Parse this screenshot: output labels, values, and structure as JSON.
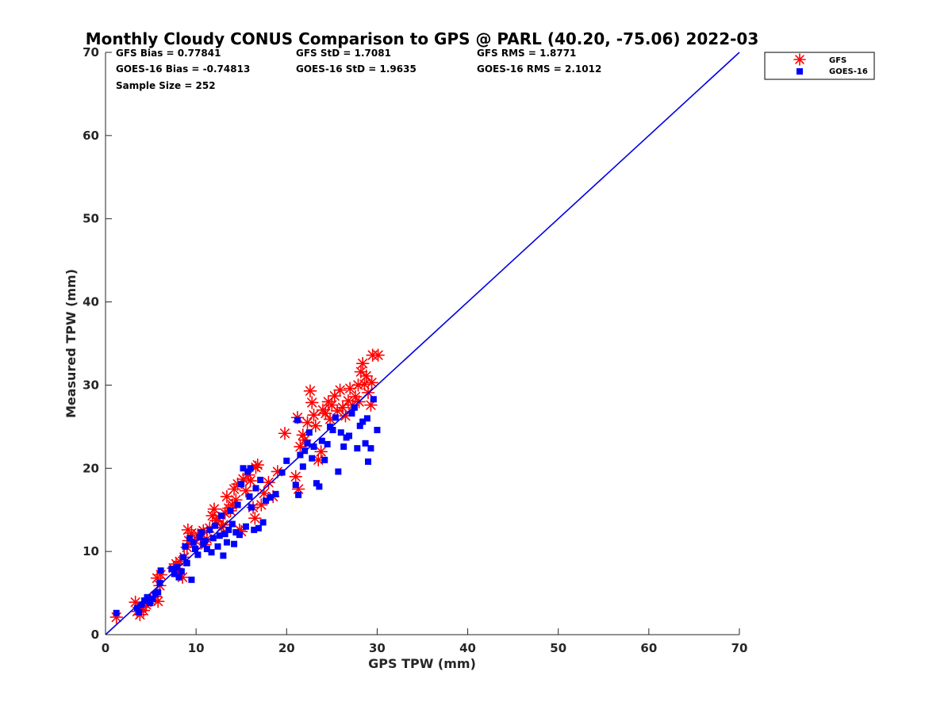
{
  "chart_data": {
    "type": "scatter",
    "title": "Monthly Cloudy CONUS Comparison to GPS @ PARL (40.20, -75.06) 2022-03",
    "xlabel": "GPS TPW (mm)",
    "ylabel": "Measured TPW (mm)",
    "xlim": [
      0,
      70
    ],
    "ylim": [
      0,
      70
    ],
    "xticks": [
      "0",
      "10",
      "20",
      "30",
      "40",
      "50",
      "60",
      "70"
    ],
    "yticks": [
      "0",
      "10",
      "20",
      "30",
      "40",
      "50",
      "60",
      "70"
    ],
    "grid": false,
    "legend_position": "top-right",
    "stats": {
      "gfs_bias": "GFS Bias = 0.77841",
      "gfs_std": "GFS StD = 1.7081",
      "gfs_rms": "GFS RMS = 1.8771",
      "goes_bias": "GOES-16 Bias = -0.74813",
      "goes_std": "GOES-16 StD = 1.9635",
      "goes_rms": "GOES-16 RMS = 2.1012",
      "sample_size": "Sample Size = 252"
    },
    "reference_line": {
      "x": [
        0,
        70
      ],
      "y": [
        0,
        70
      ],
      "color": "#0000e6"
    },
    "series": [
      {
        "name": "GFS",
        "marker": "asterisk",
        "color": "#ff0000",
        "points": [
          [
            1.2,
            2.1
          ],
          [
            3.5,
            2.8
          ],
          [
            3.8,
            2.4
          ],
          [
            4.0,
            3.3
          ],
          [
            4.2,
            2.9
          ],
          [
            4.5,
            3.6
          ],
          [
            3.3,
            3.9
          ],
          [
            5.0,
            4.1
          ],
          [
            5.5,
            4.6
          ],
          [
            5.8,
            4.0
          ],
          [
            6.0,
            5.9
          ],
          [
            6.1,
            7.2
          ],
          [
            5.7,
            6.8
          ],
          [
            7.5,
            8.0
          ],
          [
            7.8,
            8.5
          ],
          [
            8.2,
            8.8
          ],
          [
            8.5,
            6.9
          ],
          [
            8.0,
            7.5
          ],
          [
            8.7,
            9.3
          ],
          [
            9.0,
            10.5
          ],
          [
            9.2,
            11.3
          ],
          [
            9.5,
            12.2
          ],
          [
            9.1,
            12.6
          ],
          [
            9.8,
            11.0
          ],
          [
            10.2,
            12.0
          ],
          [
            10.5,
            11.6
          ],
          [
            10.8,
            12.5
          ],
          [
            11.0,
            10.8
          ],
          [
            11.2,
            11.5
          ],
          [
            11.5,
            12.8
          ],
          [
            11.8,
            14.3
          ],
          [
            12.0,
            15.1
          ],
          [
            12.2,
            13.7
          ],
          [
            12.5,
            14.0
          ],
          [
            12.8,
            12.9
          ],
          [
            13.0,
            13.2
          ],
          [
            13.2,
            14.6
          ],
          [
            13.4,
            16.6
          ],
          [
            13.6,
            15.2
          ],
          [
            13.8,
            14.9
          ],
          [
            14.0,
            15.6
          ],
          [
            14.2,
            17.5
          ],
          [
            14.4,
            16.2
          ],
          [
            14.6,
            18.1
          ],
          [
            14.8,
            12.6
          ],
          [
            15.0,
            12.4
          ],
          [
            15.2,
            18.7
          ],
          [
            15.5,
            17.3
          ],
          [
            15.8,
            19.2
          ],
          [
            16.0,
            18.5
          ],
          [
            16.3,
            15.3
          ],
          [
            16.5,
            14.0
          ],
          [
            16.8,
            20.4
          ],
          [
            16.6,
            20.1
          ],
          [
            17.2,
            15.6
          ],
          [
            17.5,
            17.0
          ],
          [
            18.0,
            18.3
          ],
          [
            18.5,
            16.6
          ],
          [
            19.0,
            19.6
          ],
          [
            19.8,
            24.2
          ],
          [
            21.0,
            19.0
          ],
          [
            21.3,
            17.5
          ],
          [
            21.2,
            26.1
          ],
          [
            21.5,
            22.6
          ],
          [
            21.8,
            24.0
          ],
          [
            22.0,
            23.4
          ],
          [
            22.3,
            25.5
          ],
          [
            22.6,
            29.3
          ],
          [
            22.8,
            27.9
          ],
          [
            23.0,
            26.4
          ],
          [
            23.2,
            25.1
          ],
          [
            23.5,
            21.0
          ],
          [
            23.8,
            22.0
          ],
          [
            24.0,
            27.0
          ],
          [
            24.3,
            26.6
          ],
          [
            24.6,
            28.0
          ],
          [
            24.8,
            25.9
          ],
          [
            25.0,
            27.6
          ],
          [
            25.3,
            28.7
          ],
          [
            25.6,
            26.9
          ],
          [
            25.9,
            29.4
          ],
          [
            26.2,
            27.3
          ],
          [
            26.5,
            26.3
          ],
          [
            26.8,
            28.1
          ],
          [
            27.0,
            29.6
          ],
          [
            27.3,
            27.6
          ],
          [
            27.6,
            28.6
          ],
          [
            27.9,
            30.0
          ],
          [
            28.2,
            31.6
          ],
          [
            28.4,
            32.6
          ],
          [
            28.6,
            30.1
          ],
          [
            28.8,
            31.1
          ],
          [
            29.0,
            29.1
          ],
          [
            29.3,
            27.6
          ],
          [
            29.5,
            33.6
          ],
          [
            30.1,
            33.6
          ],
          [
            29.4,
            30.3
          ],
          [
            28.0,
            28.0
          ]
        ]
      },
      {
        "name": "GOES-16",
        "marker": "square",
        "color": "#0000ff",
        "points": [
          [
            1.2,
            2.6
          ],
          [
            3.5,
            3.2
          ],
          [
            3.7,
            2.7
          ],
          [
            4.0,
            3.6
          ],
          [
            4.3,
            4.1
          ],
          [
            4.6,
            4.5
          ],
          [
            4.9,
            3.8
          ],
          [
            5.2,
            4.3
          ],
          [
            5.5,
            4.9
          ],
          [
            5.8,
            5.1
          ],
          [
            6.0,
            6.2
          ],
          [
            6.1,
            7.7
          ],
          [
            7.3,
            7.9
          ],
          [
            7.6,
            7.3
          ],
          [
            7.9,
            8.1
          ],
          [
            8.1,
            6.9
          ],
          [
            8.4,
            7.6
          ],
          [
            8.6,
            9.3
          ],
          [
            8.8,
            10.6
          ],
          [
            9.0,
            8.6
          ],
          [
            9.3,
            11.6
          ],
          [
            9.5,
            6.6
          ],
          [
            9.7,
            11.1
          ],
          [
            9.9,
            10.3
          ],
          [
            10.2,
            9.6
          ],
          [
            10.4,
            11.7
          ],
          [
            10.6,
            12.3
          ],
          [
            10.8,
            10.9
          ],
          [
            11.0,
            11.3
          ],
          [
            11.2,
            10.3
          ],
          [
            11.5,
            12.6
          ],
          [
            11.7,
            9.9
          ],
          [
            11.9,
            11.6
          ],
          [
            12.1,
            13.1
          ],
          [
            12.4,
            10.6
          ],
          [
            12.6,
            11.9
          ],
          [
            12.8,
            14.3
          ],
          [
            13.0,
            9.5
          ],
          [
            13.2,
            12.1
          ],
          [
            13.4,
            11.1
          ],
          [
            13.6,
            12.6
          ],
          [
            13.8,
            14.9
          ],
          [
            14.0,
            13.3
          ],
          [
            14.2,
            10.9
          ],
          [
            14.4,
            12.3
          ],
          [
            14.6,
            15.6
          ],
          [
            14.8,
            12.0
          ],
          [
            15.0,
            18.1
          ],
          [
            15.2,
            20.0
          ],
          [
            15.5,
            13.0
          ],
          [
            15.7,
            19.6
          ],
          [
            15.9,
            16.6
          ],
          [
            16.1,
            15.3
          ],
          [
            16.4,
            12.6
          ],
          [
            16.6,
            17.6
          ],
          [
            16.9,
            12.8
          ],
          [
            17.1,
            18.6
          ],
          [
            17.4,
            13.5
          ],
          [
            17.7,
            16.1
          ],
          [
            18.2,
            16.5
          ],
          [
            18.8,
            16.9
          ],
          [
            19.5,
            19.5
          ],
          [
            20.0,
            20.9
          ],
          [
            21.0,
            18.0
          ],
          [
            21.3,
            16.8
          ],
          [
            21.5,
            21.6
          ],
          [
            21.8,
            20.2
          ],
          [
            22.0,
            22.1
          ],
          [
            22.3,
            23.0
          ],
          [
            22.5,
            24.3
          ],
          [
            22.8,
            21.2
          ],
          [
            23.0,
            22.6
          ],
          [
            23.3,
            18.2
          ],
          [
            23.6,
            17.8
          ],
          [
            23.9,
            23.3
          ],
          [
            24.2,
            21.0
          ],
          [
            24.5,
            22.9
          ],
          [
            24.8,
            25.0
          ],
          [
            25.1,
            24.6
          ],
          [
            25.4,
            26.1
          ],
          [
            25.7,
            19.6
          ],
          [
            26.0,
            24.3
          ],
          [
            26.3,
            22.6
          ],
          [
            26.6,
            23.7
          ],
          [
            26.9,
            23.9
          ],
          [
            27.2,
            26.6
          ],
          [
            27.5,
            27.3
          ],
          [
            27.8,
            22.4
          ],
          [
            28.1,
            25.1
          ],
          [
            28.4,
            25.6
          ],
          [
            28.7,
            23.0
          ],
          [
            29.0,
            20.8
          ],
          [
            29.3,
            22.4
          ],
          [
            29.6,
            28.3
          ],
          [
            30.0,
            24.6
          ],
          [
            28.9,
            26.0
          ],
          [
            21.2,
            25.8
          ],
          [
            16.0,
            20.0
          ]
        ]
      }
    ]
  }
}
